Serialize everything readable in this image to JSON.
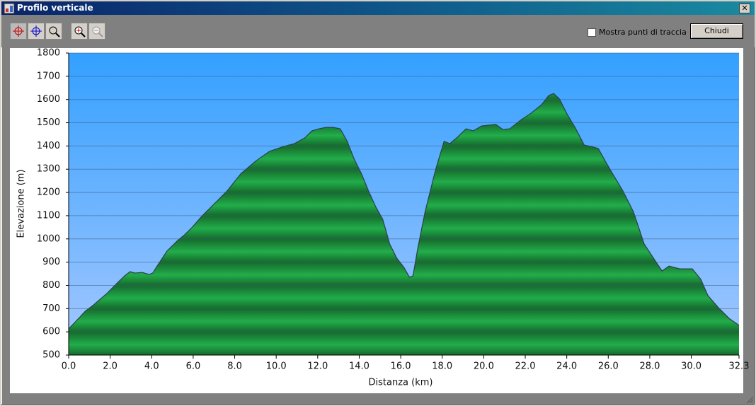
{
  "window": {
    "title": "Profilo verticale"
  },
  "toolbar": {
    "checkbox_label": "Mostra punti di traccia",
    "close_button": "Chiudi"
  },
  "chart_data": {
    "type": "area",
    "x_label": "Distanza   (km)",
    "y_label": "Elevazione (m)",
    "x": [
      0,
      0.48,
      0.8,
      1.16,
      1.84,
      2.35,
      2.7,
      2.96,
      3.2,
      3.54,
      3.88,
      4.05,
      4.29,
      4.74,
      5.25,
      5.59,
      5.93,
      6.44,
      6.95,
      7.63,
      8.31,
      9.0,
      9.68,
      10.36,
      10.87,
      11.38,
      11.72,
      12.06,
      12.4,
      12.74,
      13.08,
      13.42,
      13.76,
      14.1,
      14.45,
      14.79,
      15.13,
      15.47,
      15.81,
      16.15,
      16.42,
      16.59,
      16.83,
      17.17,
      17.68,
      18.09,
      18.36,
      18.7,
      19.15,
      19.49,
      19.9,
      20.58,
      20.92,
      21.26,
      21.77,
      22.28,
      22.79,
      23.13,
      23.37,
      23.65,
      23.99,
      24.4,
      24.84,
      25.18,
      25.52,
      25.86,
      26.2,
      26.71,
      27.22,
      27.73,
      28.07,
      28.59,
      28.93,
      29.44,
      30.05,
      30.46,
      30.8,
      31.31,
      31.82,
      32.3
    ],
    "values": [
      613,
      658,
      689,
      713,
      765,
      811,
      841,
      859,
      853,
      856,
      847,
      853,
      887,
      948,
      993,
      1018,
      1048,
      1100,
      1145,
      1206,
      1282,
      1334,
      1377,
      1398,
      1410,
      1435,
      1465,
      1474,
      1480,
      1480,
      1474,
      1420,
      1343,
      1282,
      1206,
      1139,
      1085,
      978,
      917,
      878,
      835,
      841,
      963,
      1115,
      1298,
      1420,
      1410,
      1435,
      1474,
      1465,
      1486,
      1493,
      1471,
      1474,
      1511,
      1541,
      1578,
      1617,
      1626,
      1602,
      1541,
      1480,
      1404,
      1398,
      1389,
      1334,
      1282,
      1206,
      1115,
      978,
      932,
      862,
      883,
      871,
      871,
      826,
      756,
      704,
      658,
      628
    ],
    "color": "#1f9a43",
    "line_color": "#2b3f4a",
    "xlim": [
      0,
      32.3
    ],
    "ylim": [
      500,
      1800
    ],
    "xticks": [
      {
        "value": 0,
        "label": "0.0"
      },
      {
        "value": 2,
        "label": "2.0"
      },
      {
        "value": 4,
        "label": "4.0"
      },
      {
        "value": 6,
        "label": "6.0"
      },
      {
        "value": 8,
        "label": "8.0"
      },
      {
        "value": 10,
        "label": "10.0"
      },
      {
        "value": 12,
        "label": "12.0"
      },
      {
        "value": 14,
        "label": "14.0"
      },
      {
        "value": 16,
        "label": "16.0"
      },
      {
        "value": 18,
        "label": "18.0"
      },
      {
        "value": 20,
        "label": "20.0"
      },
      {
        "value": 22,
        "label": "22.0"
      },
      {
        "value": 24,
        "label": "24.0"
      },
      {
        "value": 26,
        "label": "26.0"
      },
      {
        "value": 28,
        "label": "28.0"
      },
      {
        "value": 30,
        "label": "30.0"
      },
      32.3
    ],
    "yticks": [
      500,
      600,
      700,
      800,
      900,
      1000,
      1100,
      1200,
      1300,
      1400,
      1500,
      1600,
      1700,
      1800
    ],
    "grid": true
  }
}
